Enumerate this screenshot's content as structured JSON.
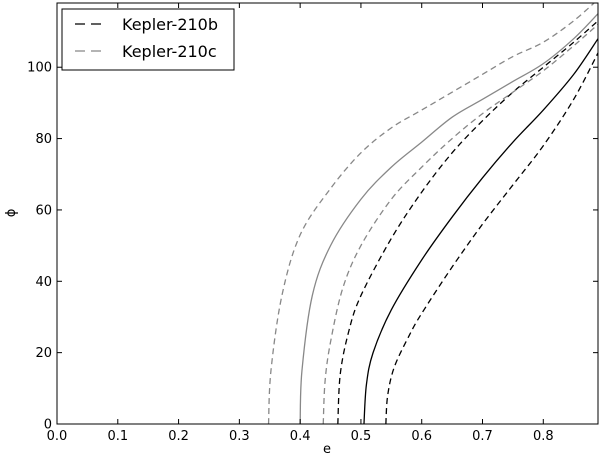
{
  "chart_data": {
    "type": "line",
    "xlabel": "e",
    "ylabel": "ϕ",
    "xlim": [
      0.0,
      0.89
    ],
    "ylim": [
      0,
      118
    ],
    "xticks": [
      "0.0",
      "0.1",
      "0.2",
      "0.3",
      "0.4",
      "0.5",
      "0.6",
      "0.7",
      "0.8"
    ],
    "yticks": [
      "0",
      "20",
      "40",
      "60",
      "80",
      "100"
    ],
    "grid": false,
    "legend_position": "top-left",
    "legend": [
      {
        "label": "Kepler-210b",
        "color": "#000000",
        "style": "dashed"
      },
      {
        "label": "Kepler-210c",
        "color": "#888888",
        "style": "dashed"
      }
    ],
    "series": [
      {
        "name": "Kepler-210b",
        "color": "#000000",
        "style": "solid",
        "x": [
          0.505,
          0.509,
          0.52,
          0.55,
          0.6,
          0.65,
          0.7,
          0.75,
          0.8,
          0.85,
          0.89
        ],
        "y": [
          0,
          11,
          20,
          32,
          46,
          58,
          69,
          79,
          88,
          98,
          108
        ]
      },
      {
        "color": "#000000",
        "style": "dashed",
        "x": [
          0.462,
          0.466,
          0.48,
          0.5,
          0.55,
          0.6,
          0.65,
          0.7,
          0.75,
          0.8,
          0.85,
          0.89
        ],
        "y": [
          0,
          14,
          26,
          36,
          52,
          65,
          76,
          85,
          93,
          100,
          107,
          113
        ]
      },
      {
        "color": "#000000",
        "style": "dashed",
        "x": [
          0.541,
          0.544,
          0.555,
          0.58,
          0.6,
          0.65,
          0.7,
          0.75,
          0.8,
          0.85,
          0.89
        ],
        "y": [
          0,
          8,
          16,
          25,
          31,
          44,
          56,
          67,
          78,
          91,
          104
        ]
      },
      {
        "name": "Kepler-210c",
        "color": "#888888",
        "style": "solid",
        "x": [
          0.4,
          0.403,
          0.42,
          0.45,
          0.5,
          0.55,
          0.6,
          0.65,
          0.7,
          0.75,
          0.8,
          0.85,
          0.89
        ],
        "y": [
          0,
          15,
          36,
          50,
          63,
          72,
          79,
          86,
          91,
          96,
          101,
          108,
          115
        ]
      },
      {
        "color": "#888888",
        "style": "dashed",
        "x": [
          0.348,
          0.352,
          0.37,
          0.4,
          0.45,
          0.5,
          0.55,
          0.6,
          0.65,
          0.7,
          0.75,
          0.8,
          0.85,
          0.89
        ],
        "y": [
          0,
          15,
          36,
          53,
          66,
          76,
          83,
          88,
          93,
          98,
          103,
          107,
          113,
          119
        ]
      },
      {
        "color": "#888888",
        "style": "dashed",
        "x": [
          0.438,
          0.441,
          0.45,
          0.47,
          0.5,
          0.55,
          0.6,
          0.65,
          0.7,
          0.75,
          0.8,
          0.85,
          0.89
        ],
        "y": [
          0,
          12,
          23,
          38,
          50,
          63,
          72,
          80,
          87,
          93,
          99,
          106,
          112
        ]
      }
    ]
  }
}
